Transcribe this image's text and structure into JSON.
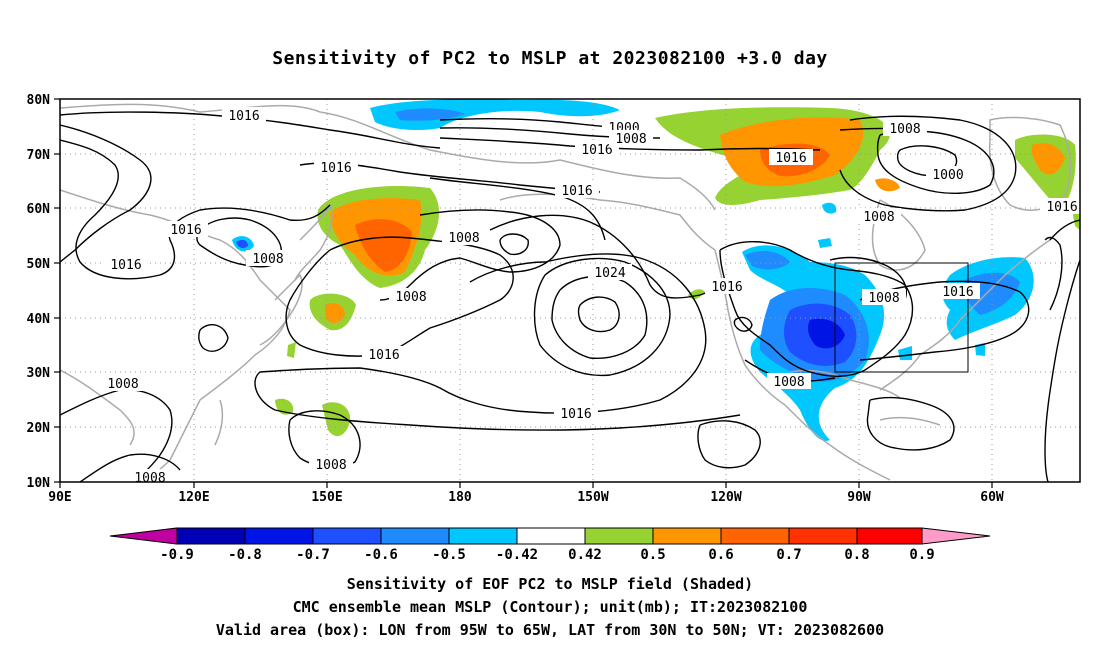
{
  "title": "Sensitivity of PC2 to MSLP at 2023082100 +3.0 day",
  "map": {
    "lat_labels": [
      "80N",
      "70N",
      "60N",
      "50N",
      "40N",
      "30N",
      "20N",
      "10N"
    ],
    "lon_labels": [
      "90E",
      "120E",
      "150E",
      "180",
      "150W",
      "120W",
      "90W",
      "60W"
    ],
    "valid_box": {
      "lon_from": "95W",
      "lon_to": "65W",
      "lat_from": "30N",
      "lat_to": "50N"
    },
    "contour_labels": [
      "1016",
      "1016",
      "1016",
      "1016",
      "1016",
      "1016",
      "1016",
      "1016",
      "1016",
      "1016",
      "1016",
      "1000",
      "1008",
      "1008",
      "1008",
      "1008",
      "1008",
      "1008",
      "1008",
      "1008",
      "1008",
      "1008",
      "1008",
      "1024",
      "1000",
      "1016"
    ]
  },
  "colorbar": {
    "labels": [
      "-0.9",
      "-0.8",
      "-0.7",
      "-0.6",
      "-0.5",
      "-0.42",
      "0.42",
      "0.5",
      "0.6",
      "0.7",
      "0.8",
      "0.9"
    ],
    "colors": [
      "#c000a0",
      "#0000b4",
      "#0014e6",
      "#1e50ff",
      "#1e8cff",
      "#00c8ff",
      "#ffffff",
      "#96d232",
      "#ff9600",
      "#ff6400",
      "#ff3200",
      "#ff0000",
      "#ff9bc8"
    ]
  },
  "captions": {
    "line1": "Sensitivity of EOF PC2 to MSLP field (Shaded)",
    "line2": "CMC ensemble mean MSLP (Contour); unit(mb); IT:2023082100",
    "line3": "Valid area (box): LON from 95W to 65W, LAT from 30N to 50N; VT: 2023082600"
  }
}
